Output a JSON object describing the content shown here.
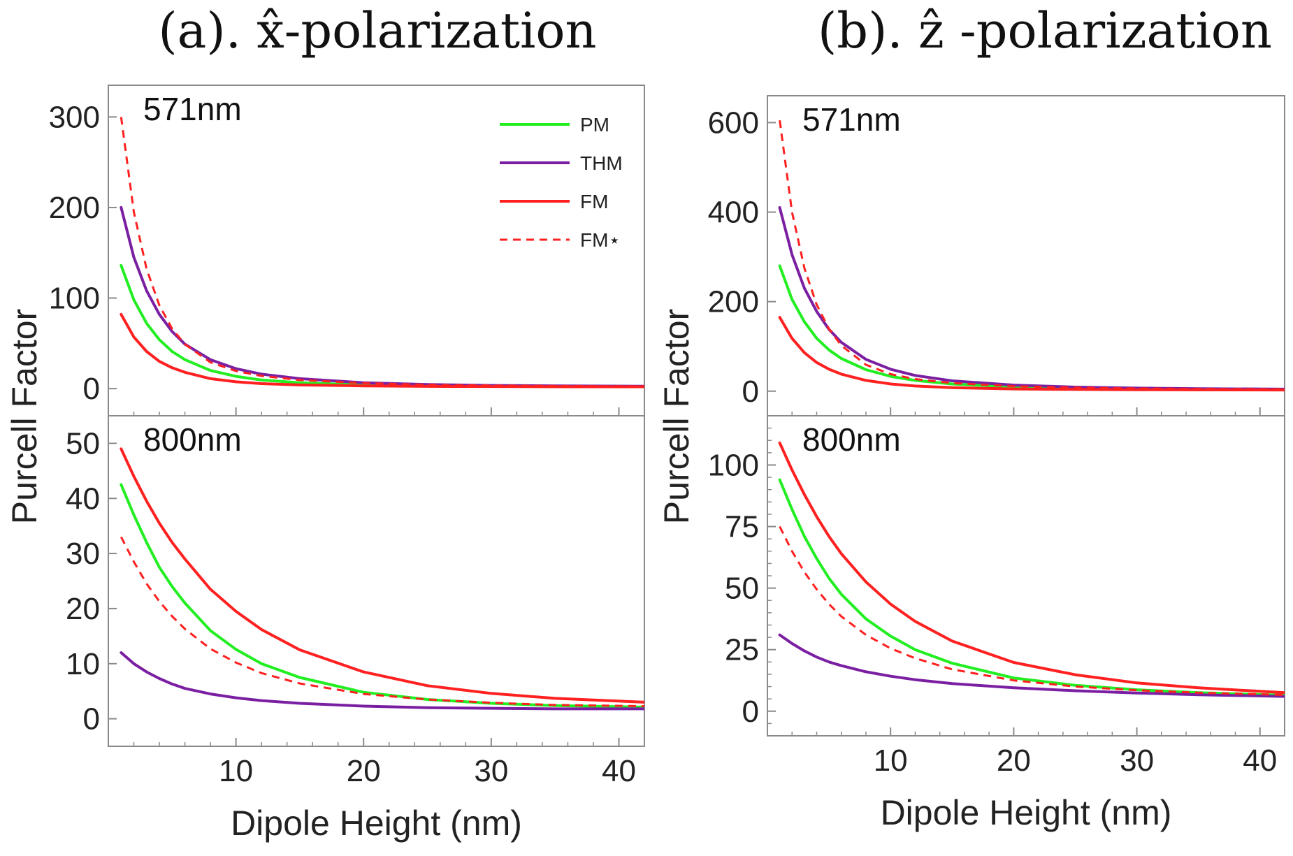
{
  "chart_data": [
    {
      "type": "line",
      "panel": "a",
      "title": "(a). x̂-polarization",
      "xlabel": "Dipole Height (nm)",
      "ylabel": "Purcell Factor",
      "xlim": [
        0,
        42
      ],
      "xticks": [
        10,
        20,
        30,
        40
      ],
      "legend_position": "top-right",
      "subplots": [
        {
          "label": "571nm",
          "ylim": [
            -30,
            335
          ],
          "yticks": [
            0,
            100,
            200,
            300
          ],
          "series": [
            {
              "name": "PM",
              "color": "#22ee22",
              "dash": "solid",
              "x": [
                1,
                2,
                3,
                4,
                5,
                6,
                8,
                10,
                12,
                15,
                20,
                25,
                30,
                35,
                42
              ],
              "y": [
                136,
                98,
                72,
                54,
                41,
                32,
                20,
                13.5,
                9.5,
                6.5,
                4,
                3,
                2.5,
                2.2,
                2
              ]
            },
            {
              "name": "THM",
              "color": "#7b1fa2",
              "dash": "solid",
              "x": [
                1,
                2,
                3,
                4,
                5,
                6,
                8,
                10,
                12,
                15,
                20,
                25,
                30,
                35,
                42
              ],
              "y": [
                200,
                145,
                108,
                82,
                63,
                49,
                32,
                22,
                16,
                11,
                6.5,
                4.5,
                3.5,
                3,
                2.6
              ]
            },
            {
              "name": "FM",
              "color": "#ff2020",
              "dash": "solid",
              "x": [
                1,
                2,
                3,
                4,
                5,
                6,
                8,
                10,
                12,
                15,
                20,
                25,
                30,
                35,
                42
              ],
              "y": [
                82,
                57,
                41,
                30,
                23,
                18,
                11,
                7.5,
                5.5,
                4,
                3,
                2.5,
                2.3,
                2.1,
                2
              ]
            },
            {
              "name": "FM*",
              "color": "#ff2020",
              "dash": "dashed",
              "x": [
                1,
                2,
                3,
                4,
                5,
                6,
                8,
                10,
                12,
                15,
                20,
                25,
                30,
                35,
                42
              ],
              "y": [
                300,
                195,
                132,
                92,
                66,
                49,
                29,
                19.5,
                14,
                9.5,
                6,
                4.3,
                3.4,
                2.9,
                2.5
              ]
            }
          ]
        },
        {
          "label": "800nm",
          "ylim": [
            -5,
            55
          ],
          "yticks": [
            0,
            10,
            20,
            30,
            40,
            50
          ],
          "series": [
            {
              "name": "PM",
              "color": "#22ee22",
              "dash": "solid",
              "x": [
                1,
                2,
                3,
                4,
                5,
                6,
                8,
                10,
                12,
                15,
                20,
                25,
                30,
                35,
                42
              ],
              "y": [
                42.5,
                37,
                32,
                27.5,
                24,
                21,
                16,
                12.6,
                10,
                7.5,
                4.8,
                3.5,
                2.8,
                2.4,
                2.1
              ]
            },
            {
              "name": "THM",
              "color": "#7b1fa2",
              "dash": "solid",
              "x": [
                1,
                2,
                3,
                4,
                5,
                6,
                8,
                10,
                12,
                15,
                20,
                25,
                30,
                35,
                42
              ],
              "y": [
                12,
                10,
                8.5,
                7.3,
                6.3,
                5.5,
                4.5,
                3.8,
                3.3,
                2.8,
                2.3,
                2,
                1.9,
                1.8,
                1.8
              ]
            },
            {
              "name": "FM",
              "color": "#ff2020",
              "dash": "solid",
              "x": [
                1,
                2,
                3,
                4,
                5,
                6,
                8,
                10,
                12,
                15,
                20,
                25,
                30,
                35,
                42
              ],
              "y": [
                49,
                44,
                39.5,
                35.5,
                32,
                29,
                23.5,
                19.5,
                16.2,
                12.5,
                8.5,
                6,
                4.6,
                3.7,
                3
              ]
            },
            {
              "name": "FM*",
              "color": "#ff2020",
              "dash": "dashed",
              "x": [
                1,
                2,
                3,
                4,
                5,
                6,
                8,
                10,
                12,
                15,
                20,
                25,
                30,
                35,
                42
              ],
              "y": [
                33,
                28.5,
                24.5,
                21.3,
                18.6,
                16.3,
                12.7,
                10.2,
                8.3,
                6.4,
                4.5,
                3.5,
                2.9,
                2.5,
                2.3
              ]
            }
          ]
        }
      ]
    },
    {
      "type": "line",
      "panel": "b",
      "title": "(b). ẑ -polarization",
      "xlabel": "Dipole Height (nm)",
      "ylabel": "Purcell Factor",
      "xlim": [
        0,
        42
      ],
      "xticks": [
        10,
        20,
        30,
        40
      ],
      "subplots": [
        {
          "label": "571nm",
          "ylim": [
            -55,
            660
          ],
          "yticks": [
            0,
            200,
            400,
            600
          ],
          "series": [
            {
              "name": "PM",
              "color": "#22ee22",
              "dash": "solid",
              "x": [
                1,
                2,
                3,
                4,
                5,
                6,
                8,
                10,
                12,
                15,
                20,
                25,
                30,
                35,
                42
              ],
              "y": [
                280,
                205,
                155,
                118,
                92,
                73,
                48,
                33,
                24,
                16,
                9.5,
                6.5,
                5,
                4.2,
                3.6
              ]
            },
            {
              "name": "THM",
              "color": "#7b1fa2",
              "dash": "solid",
              "x": [
                1,
                2,
                3,
                4,
                5,
                6,
                8,
                10,
                12,
                15,
                20,
                25,
                30,
                35,
                42
              ],
              "y": [
                410,
                305,
                230,
                178,
                138,
                109,
                71,
                49,
                35,
                23,
                13.5,
                9,
                6.8,
                5.5,
                4.5
              ]
            },
            {
              "name": "FM",
              "color": "#ff2020",
              "dash": "solid",
              "x": [
                1,
                2,
                3,
                4,
                5,
                6,
                8,
                10,
                12,
                15,
                20,
                25,
                30,
                35,
                42
              ],
              "y": [
                165,
                118,
                86,
                64,
                49,
                38,
                24,
                16,
                11.5,
                7.8,
                5,
                3.8,
                3.2,
                2.9,
                2.6
              ]
            },
            {
              "name": "FM*",
              "color": "#ff2020",
              "dash": "dashed",
              "x": [
                1,
                2,
                3,
                4,
                5,
                6,
                8,
                10,
                12,
                15,
                20,
                25,
                30,
                35,
                42
              ],
              "y": [
                605,
                400,
                275,
                193,
                139,
                102,
                59,
                38,
                27,
                18,
                11,
                7.8,
                6,
                5,
                4.3
              ]
            }
          ]
        },
        {
          "label": "800nm",
          "ylim": [
            -10,
            120
          ],
          "yticks": [
            0,
            25,
            50,
            75,
            100
          ],
          "series": [
            {
              "name": "PM",
              "color": "#22ee22",
              "dash": "solid",
              "x": [
                1,
                2,
                3,
                4,
                5,
                6,
                8,
                10,
                12,
                15,
                20,
                25,
                30,
                35,
                42
              ],
              "y": [
                94,
                82,
                71,
                62,
                54,
                47.5,
                37.5,
                30.5,
                25,
                19.5,
                13.5,
                10.5,
                8.7,
                7.5,
                6.5
              ]
            },
            {
              "name": "THM",
              "color": "#7b1fa2",
              "dash": "solid",
              "x": [
                1,
                2,
                3,
                4,
                5,
                6,
                8,
                10,
                12,
                15,
                20,
                25,
                30,
                35,
                42
              ],
              "y": [
                31,
                27.5,
                24.5,
                22,
                20,
                18.5,
                16,
                14.2,
                12.8,
                11.2,
                9.5,
                8.3,
                7.4,
                6.7,
                6
              ]
            },
            {
              "name": "FM",
              "color": "#ff2020",
              "dash": "solid",
              "x": [
                1,
                2,
                3,
                4,
                5,
                6,
                8,
                10,
                12,
                15,
                20,
                25,
                30,
                35,
                42
              ],
              "y": [
                109,
                98,
                88,
                79,
                71,
                64,
                52.5,
                43.5,
                36.5,
                28.5,
                19.8,
                14.8,
                11.5,
                9.5,
                7.5
              ]
            },
            {
              "name": "FM*",
              "color": "#ff2020",
              "dash": "dashed",
              "x": [
                1,
                2,
                3,
                4,
                5,
                6,
                8,
                10,
                12,
                15,
                20,
                25,
                30,
                35,
                42
              ],
              "y": [
                75,
                65,
                56.5,
                49.5,
                43.5,
                38.5,
                31,
                25.5,
                21.5,
                17,
                12.5,
                10,
                8.5,
                7.5,
                6.6
              ]
            }
          ]
        }
      ]
    }
  ],
  "legend": [
    {
      "label": "PM",
      "color": "#22ee22",
      "dash": "solid"
    },
    {
      "label": "THM",
      "color": "#7b1fa2",
      "dash": "solid"
    },
    {
      "label": "FM",
      "color": "#ff2020",
      "dash": "solid"
    },
    {
      "label": "FM⋆",
      "color": "#ff2020",
      "dash": "dashed"
    }
  ]
}
